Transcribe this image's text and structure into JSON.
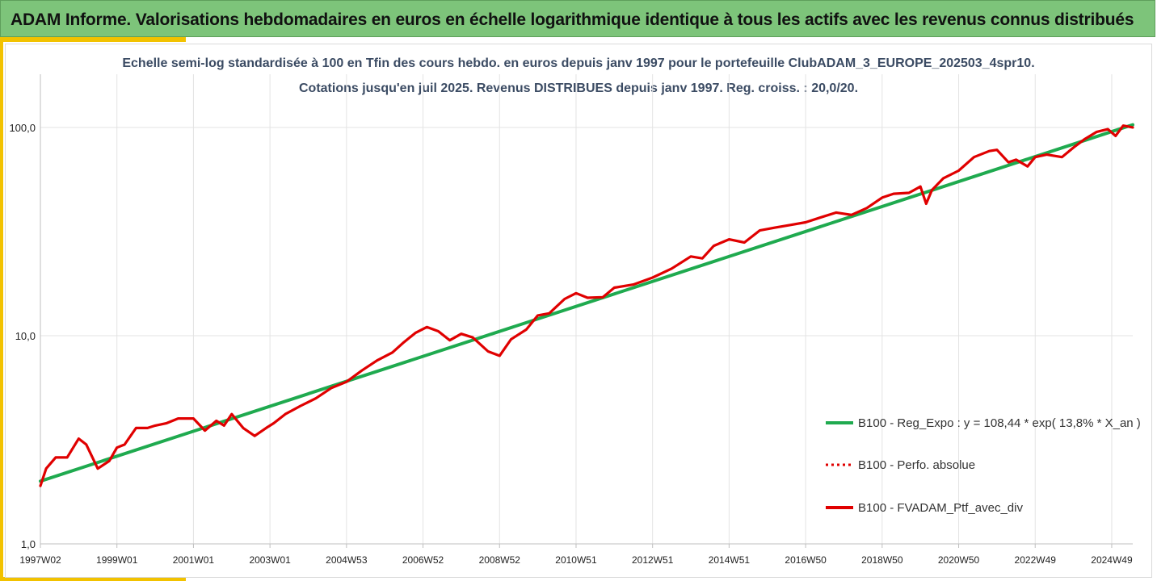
{
  "header": {
    "title": "ADAM Informe. Valorisations hebdomadaires en euros en échelle logarithmique identique à tous les actifs avec les revenus connus distribués"
  },
  "colors": {
    "header_bg": "#7dc47a",
    "accent": "#f2c200",
    "regression": "#1faa4f",
    "portfolio": "#e00000",
    "subtitle": "#3b4b63"
  },
  "chart_data": {
    "type": "line",
    "title": "Echelle semi-log standardisée à 100 en Tfin des cours hebdo.  en euros depuis janv 1997 pour le portefeuille ClubADAM_3_EUROPE_202503_4spr10.",
    "subtitle": "Cotations  jusqu'en juil 2025. Revenus DISTRIBUES depuis janv 1997. Reg. croiss. : 20,0/20.",
    "y_scale": "log",
    "ylim": [
      1,
      180
    ],
    "y_ticks": [
      1,
      10,
      100
    ],
    "y_tick_labels": [
      "1,0",
      "10,0",
      "100,0"
    ],
    "xlim": [
      1997.0,
      2025.55
    ],
    "x_tick_labels": [
      "1997W02",
      "1999W01",
      "2001W01",
      "2003W01",
      "2004W53",
      "2006W52",
      "2008W52",
      "2010W51",
      "2012W51",
      "2014W51",
      "2016W50",
      "2018W50",
      "2020W50",
      "2022W49",
      "2024W49"
    ],
    "x_tick_values": [
      1997.0,
      1999.0,
      2001.0,
      2003.0,
      2005.0,
      2007.0,
      2009.0,
      2011.0,
      2013.0,
      2015.0,
      2017.0,
      2019.0,
      2021.0,
      2023.0,
      2025.0
    ],
    "grid": {
      "horizontal": true,
      "vertical": true
    },
    "legend_placement": "bottom-right",
    "series": [
      {
        "name": "B100 - Reg_Expo : y = 108,44 * exp( 13,8% *  X_an )",
        "style": "solid",
        "color": "#1faa4f",
        "x": [
          1997.0,
          2025.55
        ],
        "values": [
          2.0,
          103.0
        ]
      },
      {
        "name": "B100 - Perfo. absolue",
        "style": "dotted",
        "color": "#e00000",
        "x": [],
        "values": []
      },
      {
        "name": "B100 - FVADAM_Ptf_avec_div",
        "style": "solid",
        "color": "#e00000",
        "x": [
          1997.0,
          1997.15,
          1997.4,
          1997.7,
          1998.0,
          1998.2,
          1998.5,
          1998.8,
          1999.0,
          1999.2,
          1999.5,
          1999.8,
          2000.0,
          2000.3,
          2000.6,
          2001.0,
          2001.3,
          2001.6,
          2001.8,
          2002.0,
          2002.3,
          2002.6,
          2002.9,
          2003.1,
          2003.4,
          2003.8,
          2004.2,
          2004.6,
          2005.0,
          2005.4,
          2005.8,
          2006.2,
          2006.5,
          2006.8,
          2007.1,
          2007.4,
          2007.7,
          2008.0,
          2008.3,
          2008.7,
          2009.0,
          2009.3,
          2009.7,
          2010.0,
          2010.3,
          2010.7,
          2011.0,
          2011.3,
          2011.7,
          2012.0,
          2012.5,
          2013.0,
          2013.5,
          2014.0,
          2014.3,
          2014.6,
          2015.0,
          2015.4,
          2015.8,
          2016.2,
          2016.6,
          2017.0,
          2017.4,
          2017.8,
          2018.2,
          2018.6,
          2019.0,
          2019.3,
          2019.7,
          2020.0,
          2020.15,
          2020.3,
          2020.6,
          2021.0,
          2021.4,
          2021.8,
          2022.0,
          2022.3,
          2022.5,
          2022.8,
          2023.0,
          2023.3,
          2023.7,
          2024.0,
          2024.3,
          2024.6,
          2024.9,
          2025.1,
          2025.3,
          2025.55
        ],
        "values": [
          1.9,
          2.3,
          2.6,
          2.6,
          3.2,
          3.0,
          2.3,
          2.5,
          2.9,
          3.0,
          3.6,
          3.6,
          3.7,
          3.8,
          4.0,
          4.0,
          3.5,
          3.9,
          3.7,
          4.2,
          3.6,
          3.3,
          3.6,
          3.8,
          4.2,
          4.6,
          5.0,
          5.6,
          6.0,
          6.8,
          7.6,
          8.3,
          9.3,
          10.3,
          11.0,
          10.5,
          9.5,
          10.2,
          9.8,
          8.4,
          8.0,
          9.6,
          10.7,
          12.5,
          12.8,
          15.0,
          16.0,
          15.2,
          15.3,
          17.0,
          17.6,
          19.0,
          21.0,
          24.0,
          23.5,
          27.0,
          29.0,
          28.0,
          32.0,
          33.0,
          34.0,
          35.0,
          37.0,
          39.0,
          38.0,
          41.0,
          46.0,
          48.0,
          48.5,
          52.0,
          43.0,
          50.0,
          57.0,
          62.0,
          72.0,
          77.0,
          78.0,
          68.0,
          70.0,
          65.0,
          72.0,
          74.0,
          72.0,
          80.0,
          88.0,
          95.0,
          98.0,
          91.0,
          102.0,
          100.0
        ]
      }
    ]
  }
}
